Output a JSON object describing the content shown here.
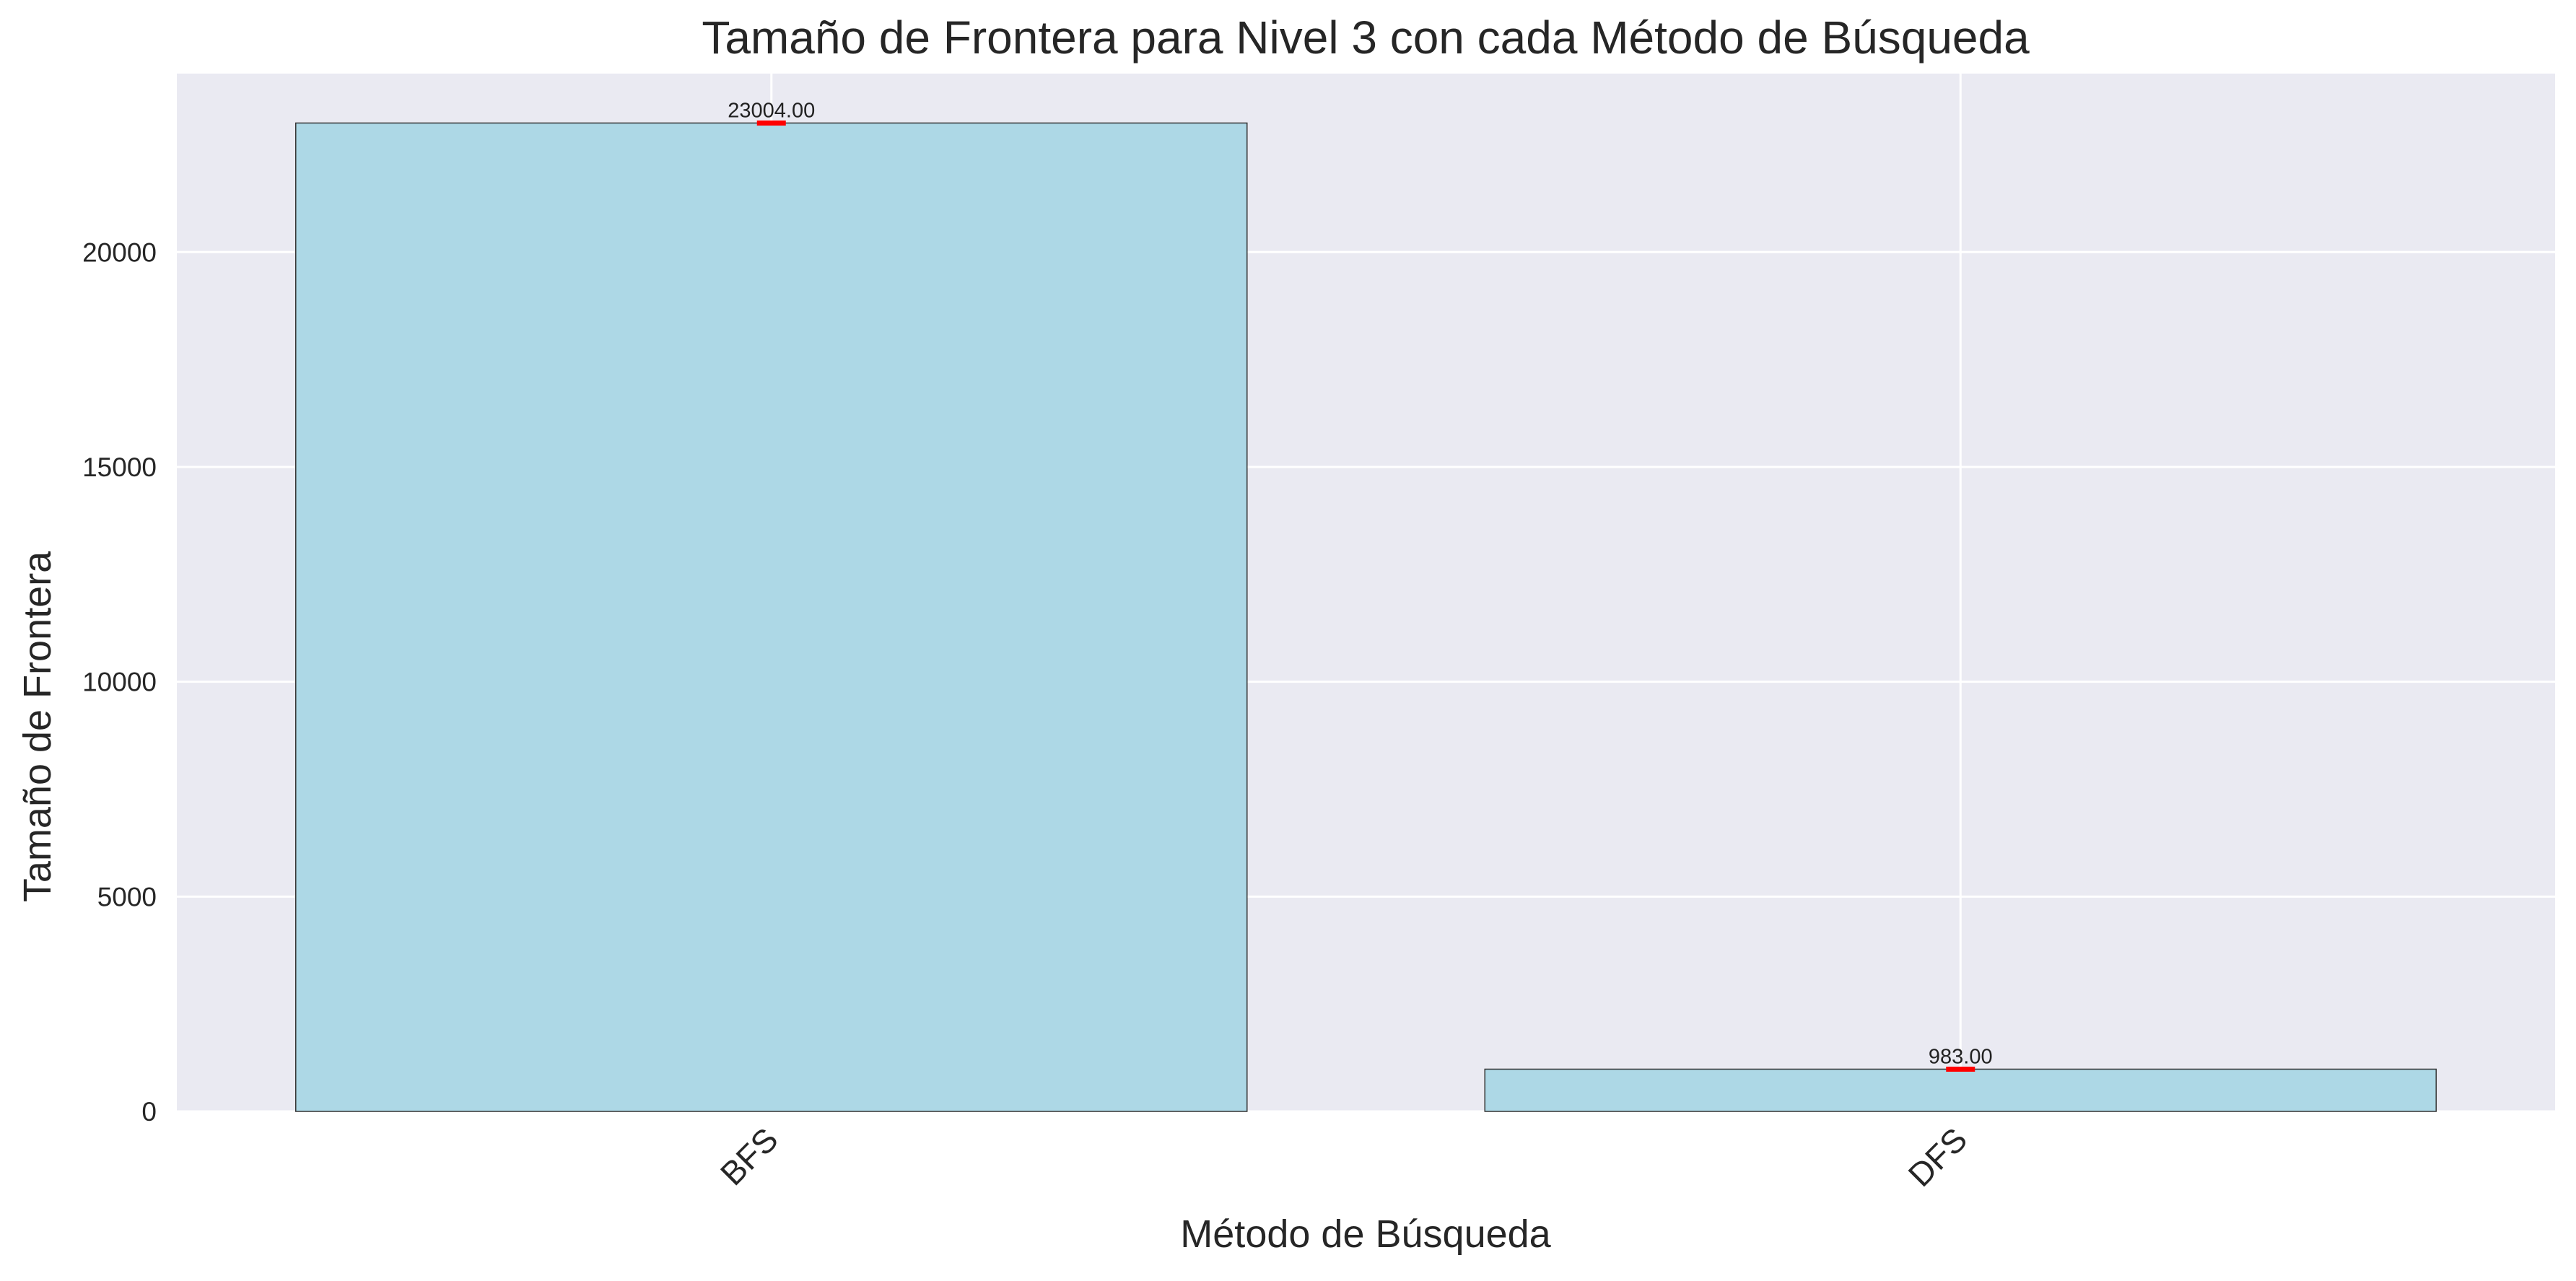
{
  "chart_data": {
    "type": "bar",
    "title": "Tamaño de Frontera para Nivel 3 con cada Método de Búsqueda",
    "xlabel": "Método de Búsqueda",
    "ylabel": "Tamaño de Frontera",
    "categories": [
      "BFS",
      "DFS"
    ],
    "values": [
      23004,
      983
    ],
    "value_labels": [
      "23004.00",
      "983.00"
    ],
    "ylim": [
      0,
      24154
    ],
    "yticks": [
      0,
      5000,
      10000,
      15000,
      20000
    ],
    "ytick_labels": [
      "0",
      "5000",
      "10000",
      "15000",
      "20000"
    ],
    "grid": true,
    "legend": "none",
    "colors": {
      "background": "#eaeaf2",
      "grid": "#ffffff",
      "bar_fill": "#add8e6",
      "bar_edge": "#333333",
      "error_marker": "#ff0000"
    }
  }
}
